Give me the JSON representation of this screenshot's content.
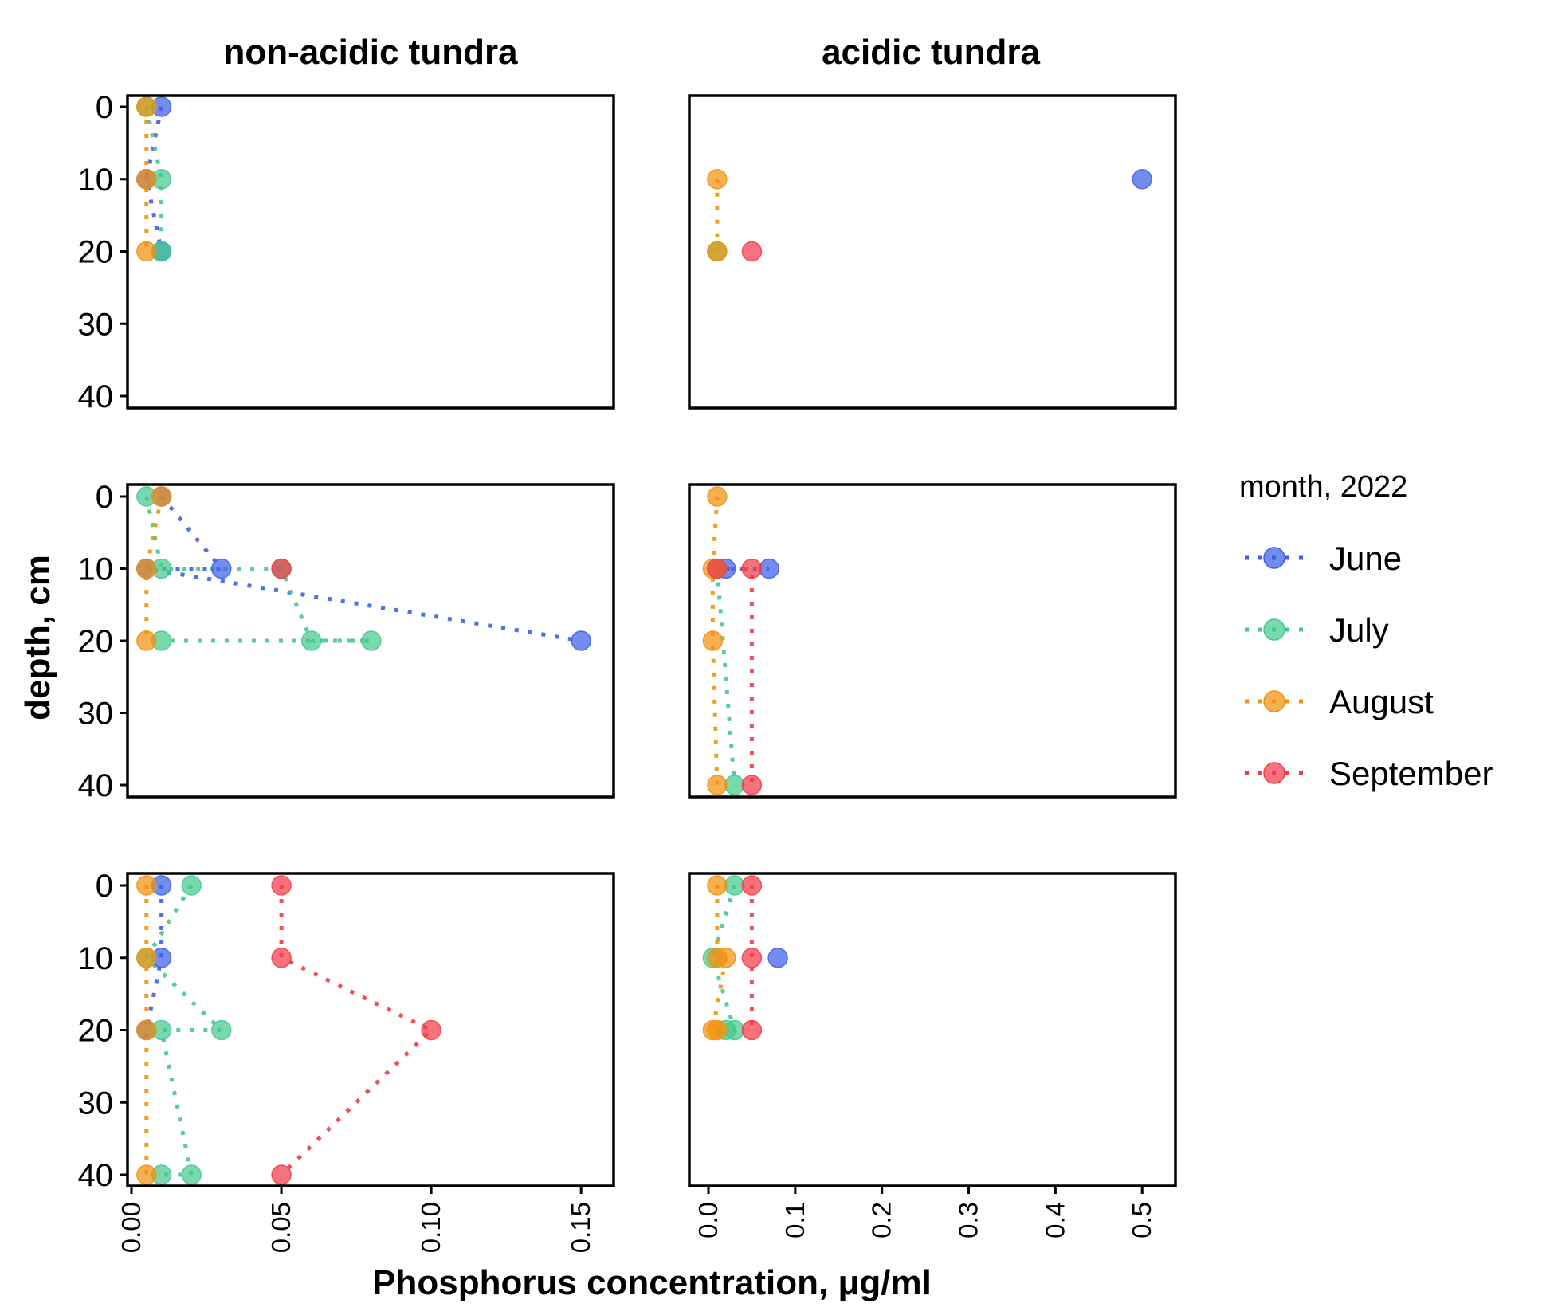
{
  "chart_data": {
    "type": "scatter",
    "facet_columns": [
      "non-acidic tundra",
      "acidic tundra"
    ],
    "facet_rows": 3,
    "xlabel": "Phosphorus concentration, μg/ml",
    "ylabel": "depth, cm",
    "y_reversed": true,
    "ylim": [
      0,
      40
    ],
    "y_ticks": [
      "0",
      "10",
      "20",
      "30",
      "40"
    ],
    "x_axes": [
      {
        "column": "non-acidic tundra",
        "xlim": [
          0,
          0.155
        ],
        "ticks": [
          0,
          0.05,
          0.1,
          0.15
        ],
        "tick_labels": [
          "0.00",
          "0.05",
          "0.10",
          "0.15"
        ]
      },
      {
        "column": "acidic tundra",
        "xlim": [
          0,
          0.52
        ],
        "ticks": [
          0,
          0.1,
          0.2,
          0.3,
          0.4,
          0.5
        ],
        "tick_labels": [
          "0.0",
          "0.1",
          "0.2",
          "0.3",
          "0.4",
          "0.5"
        ]
      }
    ],
    "legend": {
      "title": "month, 2022",
      "position": "right",
      "entries": [
        {
          "name": "June",
          "color": "#3f5fe6"
        },
        {
          "name": "July",
          "color": "#45c98e"
        },
        {
          "name": "August",
          "color": "#f2920f"
        },
        {
          "name": "September",
          "color": "#f23c49"
        }
      ]
    },
    "grid": false,
    "line_style": "dotted",
    "panels": [
      {
        "row": 1,
        "column": "non-acidic tundra",
        "series": [
          {
            "name": "June",
            "points": [
              [
                0.01,
                0
              ],
              [
                0.005,
                10
              ],
              [
                0.01,
                20
              ]
            ]
          },
          {
            "name": "July",
            "points": [
              [
                0.005,
                0
              ],
              [
                0.01,
                10
              ],
              [
                0.01,
                20
              ]
            ]
          },
          {
            "name": "August",
            "points": [
              [
                0.005,
                0
              ],
              [
                0.005,
                10
              ],
              [
                0.005,
                20
              ]
            ]
          },
          {
            "name": "September",
            "points": []
          }
        ]
      },
      {
        "row": 1,
        "column": "acidic tundra",
        "series": [
          {
            "name": "June",
            "points": [
              [
                0.5,
                10
              ]
            ]
          },
          {
            "name": "July",
            "points": [
              [
                0.01,
                20
              ]
            ]
          },
          {
            "name": "August",
            "points": [
              [
                0.01,
                10
              ],
              [
                0.01,
                20
              ]
            ]
          },
          {
            "name": "September",
            "points": [
              [
                0.05,
                20
              ]
            ]
          }
        ]
      },
      {
        "row": 2,
        "column": "non-acidic tundra",
        "series": [
          {
            "name": "June",
            "points": [
              [
                0.01,
                0
              ],
              [
                0.03,
                10
              ],
              [
                0.005,
                10
              ],
              [
                0.15,
                20
              ]
            ]
          },
          {
            "name": "July",
            "points": [
              [
                0.005,
                0
              ],
              [
                0.01,
                10
              ],
              [
                0.05,
                10
              ],
              [
                0.06,
                20
              ],
              [
                0.08,
                20
              ],
              [
                0.01,
                20
              ]
            ]
          },
          {
            "name": "August",
            "points": [
              [
                0.01,
                0
              ],
              [
                0.005,
                10
              ],
              [
                0.005,
                20
              ]
            ]
          },
          {
            "name": "September",
            "points": [
              [
                0.05,
                10
              ]
            ]
          }
        ]
      },
      {
        "row": 2,
        "column": "acidic tundra",
        "series": [
          {
            "name": "June",
            "points": [
              [
                0.02,
                10
              ],
              [
                0.07,
                10
              ]
            ]
          },
          {
            "name": "July",
            "points": [
              [
                0.01,
                10
              ],
              [
                0.03,
                40
              ]
            ]
          },
          {
            "name": "August",
            "points": [
              [
                0.01,
                0
              ],
              [
                0.005,
                10
              ],
              [
                0.005,
                20
              ],
              [
                0.01,
                40
              ]
            ]
          },
          {
            "name": "September",
            "points": [
              [
                0.01,
                10
              ],
              [
                0.05,
                10
              ],
              [
                0.05,
                40
              ]
            ]
          }
        ]
      },
      {
        "row": 3,
        "column": "non-acidic tundra",
        "series": [
          {
            "name": "June",
            "points": [
              [
                0.01,
                0
              ],
              [
                0.01,
                10
              ],
              [
                0.005,
                20
              ]
            ]
          },
          {
            "name": "July",
            "points": [
              [
                0.02,
                0
              ],
              [
                0.005,
                10
              ],
              [
                0.03,
                20
              ],
              [
                0.01,
                20
              ],
              [
                0.02,
                40
              ],
              [
                0.01,
                40
              ]
            ]
          },
          {
            "name": "August",
            "points": [
              [
                0.005,
                0
              ],
              [
                0.005,
                10
              ],
              [
                0.005,
                20
              ],
              [
                0.005,
                40
              ]
            ]
          },
          {
            "name": "September",
            "points": [
              [
                0.05,
                0
              ],
              [
                0.05,
                10
              ],
              [
                0.1,
                20
              ],
              [
                0.05,
                40
              ]
            ]
          }
        ]
      },
      {
        "row": 3,
        "column": "acidic tundra",
        "series": [
          {
            "name": "June",
            "points": [
              [
                0.08,
                10
              ]
            ]
          },
          {
            "name": "July",
            "points": [
              [
                0.03,
                0
              ],
              [
                0.005,
                10
              ],
              [
                0.03,
                20
              ],
              [
                0.02,
                20
              ]
            ]
          },
          {
            "name": "August",
            "points": [
              [
                0.01,
                0
              ],
              [
                0.01,
                10
              ],
              [
                0.02,
                10
              ],
              [
                0.005,
                20
              ],
              [
                0.01,
                20
              ]
            ]
          },
          {
            "name": "September",
            "points": [
              [
                0.05,
                0
              ],
              [
                0.05,
                10
              ],
              [
                0.05,
                20
              ]
            ]
          }
        ]
      }
    ]
  }
}
